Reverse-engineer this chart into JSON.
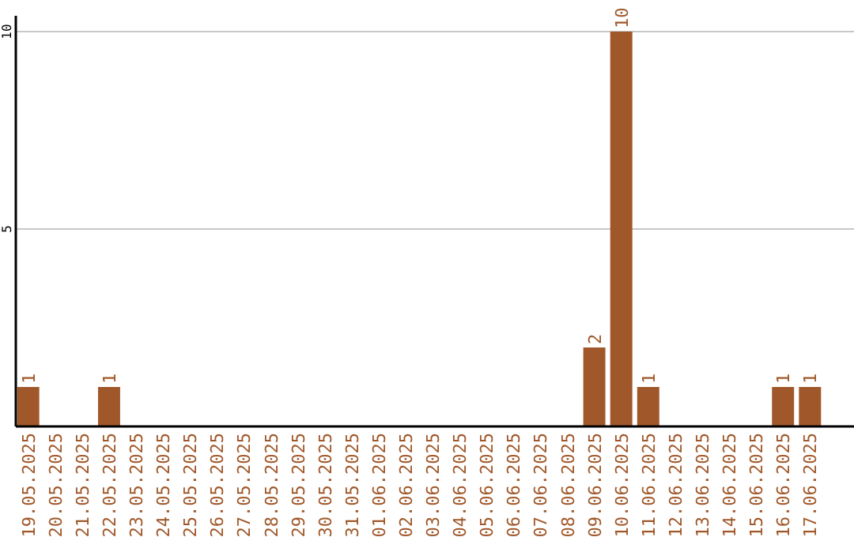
{
  "chart_data": {
    "type": "bar",
    "categories": [
      "19.05.2025",
      "20.05.2025",
      "21.05.2025",
      "22.05.2025",
      "23.05.2025",
      "24.05.2025",
      "25.05.2025",
      "26.05.2025",
      "27.05.2025",
      "28.05.2025",
      "29.05.2025",
      "30.05.2025",
      "31.05.2025",
      "01.06.2025",
      "02.06.2025",
      "03.06.2025",
      "04.06.2025",
      "05.06.2025",
      "06.06.2025",
      "07.06.2025",
      "08.06.2025",
      "09.06.2025",
      "10.06.2025",
      "11.06.2025",
      "12.06.2025",
      "13.06.2025",
      "14.06.2025",
      "15.06.2025",
      "16.06.2025",
      "17.06.2025"
    ],
    "values": [
      1,
      0,
      0,
      1,
      0,
      0,
      0,
      0,
      0,
      0,
      0,
      0,
      0,
      0,
      0,
      0,
      0,
      0,
      0,
      0,
      0,
      2,
      10,
      1,
      0,
      0,
      0,
      0,
      1,
      1
    ],
    "value_labels": [
      "1",
      null,
      null,
      "1",
      null,
      null,
      null,
      null,
      null,
      null,
      null,
      null,
      null,
      null,
      null,
      null,
      null,
      null,
      null,
      null,
      null,
      "2",
      "10",
      "1",
      null,
      null,
      null,
      null,
      "1",
      "1"
    ],
    "color": "#a0582a",
    "ylim": [
      0,
      10.4
    ],
    "yticks": [
      5,
      10
    ],
    "grid": "y"
  }
}
